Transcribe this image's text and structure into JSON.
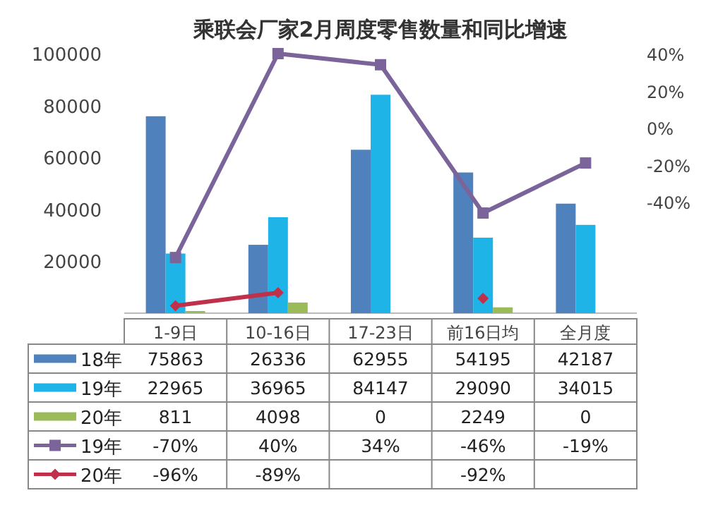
{
  "chart_data": {
    "type": "bar",
    "title": "乘联会厂家2月周度零售数量和同比增速",
    "categories": [
      "1-9日",
      "10-16日",
      "17-23日",
      "前16日均",
      "全月度"
    ],
    "series": [
      {
        "name": "18年",
        "color": "#4f81bd",
        "values": [
          75863,
          26336,
          62955,
          54195,
          42187
        ]
      },
      {
        "name": "19年",
        "color": "#1fb4e8",
        "values": [
          22965,
          36965,
          84147,
          29090,
          34015
        ]
      },
      {
        "name": "20年",
        "color": "#9bbb59",
        "values": [
          811,
          4098,
          0,
          2249,
          0
        ]
      },
      {
        "name": "19年",
        "type": "line",
        "axis": "y2",
        "marker": "square",
        "color": "#7a649a",
        "values": [
          -70,
          40,
          34,
          -46,
          -19
        ],
        "value_labels": [
          "-70%",
          "40%",
          "34%",
          "-46%",
          "-19%"
        ]
      },
      {
        "name": "20年",
        "type": "line",
        "axis": "y2",
        "marker": "diamond",
        "color": "#c0304a",
        "values": [
          -96,
          -89,
          null,
          -92,
          null
        ],
        "value_labels": [
          "-96%",
          "-89%",
          null,
          "-92%",
          null
        ]
      }
    ],
    "ylim": [
      0,
      100000
    ],
    "yticks": [
      20000,
      40000,
      60000,
      80000,
      100000
    ],
    "y2lim": [
      -100,
      40
    ],
    "y2ticks": [
      {
        "value": 40,
        "label": "40%"
      },
      {
        "value": 20,
        "label": "20%"
      },
      {
        "value": 0,
        "label": "0%"
      },
      {
        "value": -20,
        "label": "-20%"
      },
      {
        "value": -40,
        "label": "-40%"
      }
    ],
    "data_labels": true,
    "legend": "bottom",
    "grid": false
  }
}
